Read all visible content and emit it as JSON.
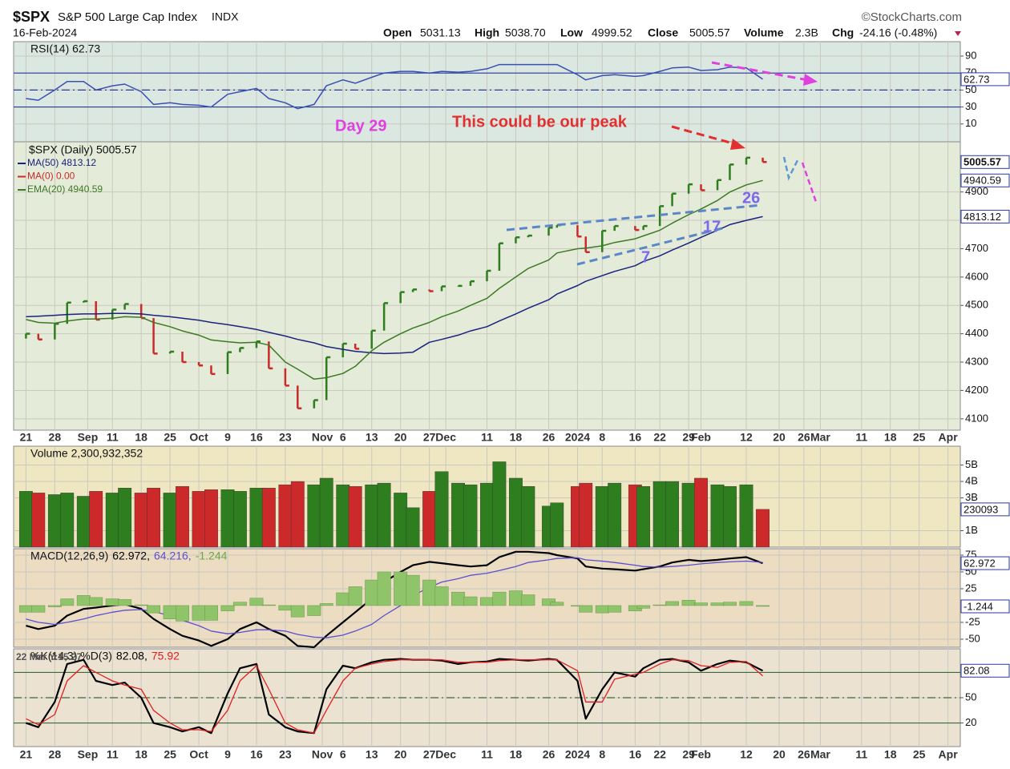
{
  "header": {
    "symbol": "$SPX",
    "name": "S&P 500 Large Cap Index",
    "exchange": "INDX",
    "date": "16-Feb-2024",
    "brand": "©StockCharts.com",
    "quote": [
      [
        "Open",
        "5031.13"
      ],
      [
        "High",
        "5038.70"
      ],
      [
        "Low",
        "4999.52"
      ],
      [
        "Close",
        "5005.57"
      ],
      [
        "Volume",
        "2.3B"
      ],
      [
        "Chg",
        "-24.16 (-0.48%)"
      ]
    ]
  },
  "chart_data": [
    {
      "type": "line",
      "title": "RSI(14) 62.73",
      "ylim": [
        -11,
        107
      ],
      "yticks": [
        10,
        30,
        50,
        70,
        90
      ],
      "ref_lines": [
        70,
        50,
        30
      ],
      "ref_styles": [
        "solid",
        "dashdot",
        "solid"
      ],
      "ref_color": "#2a3a9a",
      "background": "#dbe8e2",
      "series": [
        {
          "name": "",
          "color": "#3a4fb0",
          "values": [
            40,
            38,
            50,
            60,
            60,
            50,
            55,
            57,
            48,
            33,
            35,
            33,
            32,
            30,
            45,
            48,
            52,
            40,
            35,
            28,
            33,
            55,
            62,
            58,
            65,
            70,
            72,
            72,
            70,
            72,
            71,
            72,
            75,
            80,
            80,
            80,
            80,
            80,
            68,
            62,
            67,
            68,
            66,
            67,
            72,
            76,
            77,
            73,
            74,
            77,
            76,
            62.73
          ]
        }
      ],
      "last_values": [
        62.73
      ],
      "annotations": [
        "Day 29",
        "This could be our peak"
      ]
    },
    {
      "type": "stock",
      "name": "$SPX (Daily) 5005.57",
      "up_color": "#2e7d1e",
      "down_color": "#cc2a2a",
      "ylim": [
        4060,
        5077
      ],
      "yticks": [
        4100,
        4200,
        4300,
        4400,
        4500,
        4600,
        4700,
        4800,
        4900
      ],
      "background": "#e4ebd8",
      "xlim": [
        -3,
        227
      ],
      "xticks": [
        {
          "value": 0,
          "label": "21"
        },
        {
          "value": 7,
          "label": "28"
        },
        {
          "value": 15,
          "label": "Sep"
        },
        {
          "value": 21,
          "label": "11"
        },
        {
          "value": 28,
          "label": "18"
        },
        {
          "value": 35,
          "label": "25"
        },
        {
          "value": 42,
          "label": "Oct"
        },
        {
          "value": 49,
          "label": "9"
        },
        {
          "value": 56,
          "label": "16"
        },
        {
          "value": 63,
          "label": "23"
        },
        {
          "value": 72,
          "label": "Nov"
        },
        {
          "value": 77,
          "label": "6"
        },
        {
          "value": 84,
          "label": "13"
        },
        {
          "value": 91,
          "label": "20"
        },
        {
          "value": 98,
          "label": "27"
        },
        {
          "value": 102,
          "label": "Dec"
        },
        {
          "value": 112,
          "label": "11"
        },
        {
          "value": 119,
          "label": "18"
        },
        {
          "value": 127,
          "label": "26"
        },
        {
          "value": 134,
          "label": "2024"
        },
        {
          "value": 140,
          "label": "8"
        },
        {
          "value": 148,
          "label": "16"
        },
        {
          "value": 154,
          "label": "22"
        },
        {
          "value": 161,
          "label": "29"
        },
        {
          "value": 164,
          "label": "Feb"
        },
        {
          "value": 175,
          "label": "12"
        },
        {
          "value": 183,
          "label": "20"
        },
        {
          "value": 189,
          "label": "26"
        },
        {
          "value": 193,
          "label": "Mar"
        },
        {
          "value": 203,
          "label": "11"
        },
        {
          "value": 210,
          "label": "18"
        },
        {
          "value": 217,
          "label": "25"
        },
        {
          "value": 224,
          "label": "Apr"
        }
      ],
      "x": [
        0,
        3,
        7,
        10,
        14,
        17,
        21,
        24,
        28,
        31,
        35,
        38,
        42,
        45,
        49,
        52,
        56,
        59,
        63,
        66,
        70,
        73,
        77,
        80,
        84,
        87,
        91,
        94,
        98,
        101,
        105,
        108,
        112,
        115,
        119,
        122,
        127,
        129,
        134,
        136,
        140,
        143,
        148,
        150,
        154,
        157,
        161,
        164,
        168,
        171,
        175,
        179
      ],
      "values": [
        4400,
        4380,
        4435,
        4510,
        4515,
        4450,
        4485,
        4505,
        4455,
        4330,
        4337,
        4300,
        4288,
        4258,
        4335,
        4350,
        4373,
        4278,
        4217,
        4137,
        4166,
        4317,
        4365,
        4347,
        4411,
        4508,
        4547,
        4556,
        4550,
        4567,
        4569,
        4585,
        4622,
        4719,
        4740,
        4746,
        4774,
        4783,
        4743,
        4688,
        4763,
        4780,
        4766,
        4780,
        4850,
        4894,
        4927,
        4906,
        4942,
        4997,
        5021,
        5005.57
      ],
      "series": [
        {
          "name": "MA(50) 4813.12",
          "color": "#1a237e",
          "values": [
            4460,
            4462,
            4465,
            4468,
            4470,
            4470,
            4472,
            4472,
            4470,
            4465,
            4460,
            4455,
            4448,
            4440,
            4432,
            4425,
            4415,
            4405,
            4392,
            4380,
            4368,
            4355,
            4345,
            4338,
            4333,
            4330,
            4332,
            4335,
            4370,
            4380,
            4395,
            4410,
            4425,
            4445,
            4470,
            4490,
            4520,
            4540,
            4570,
            4585,
            4605,
            4620,
            4640,
            4655,
            4675,
            4695,
            4720,
            4740,
            4765,
            4785,
            4800,
            4813.12
          ]
        },
        {
          "name": "MA(0) 0.00",
          "color": "#cc2a2a"
        },
        {
          "name": "EMA(20) 4940.59",
          "color": "#3d7a25",
          "values": [
            4450,
            4440,
            4437,
            4445,
            4452,
            4452,
            4455,
            4460,
            4458,
            4440,
            4425,
            4410,
            4395,
            4378,
            4372,
            4368,
            4370,
            4360,
            4300,
            4275,
            4240,
            4245,
            4260,
            4285,
            4340,
            4370,
            4400,
            4420,
            4440,
            4460,
            4480,
            4500,
            4525,
            4560,
            4600,
            4630,
            4660,
            4685,
            4700,
            4702,
            4710,
            4722,
            4735,
            4745,
            4765,
            4790,
            4820,
            4840,
            4870,
            4900,
            4925,
            4940.59
          ]
        }
      ],
      "last_values": [
        5005.57,
        4940.59,
        4813.12
      ],
      "annotations": [
        "7",
        "17",
        "26"
      ]
    },
    {
      "type": "bar",
      "title": "Volume 2,300,932,352",
      "up_color": "#2e7d1e",
      "down_color": "#cc2a2a",
      "ylim": [
        0,
        6.15
      ],
      "background": "#efe6c2",
      "yticks": [
        {
          "value": 1,
          "label": "1B"
        },
        {
          "value": 3,
          "label": "3B"
        },
        {
          "value": 4,
          "label": "4B"
        },
        {
          "value": 5,
          "label": "5B"
        }
      ],
      "values": [
        3.4,
        3.3,
        3.2,
        3.3,
        3.1,
        3.4,
        3.3,
        3.6,
        3.3,
        3.6,
        3.3,
        3.7,
        3.4,
        3.5,
        3.5,
        3.4,
        3.6,
        3.6,
        3.8,
        4.0,
        3.8,
        4.2,
        3.8,
        3.7,
        3.8,
        3.9,
        3.3,
        2.4,
        3.4,
        4.6,
        3.9,
        3.8,
        3.9,
        5.2,
        4.2,
        3.7,
        2.5,
        2.7,
        3.7,
        3.9,
        3.7,
        3.9,
        3.8,
        3.7,
        4.0,
        4.0,
        3.9,
        4.2,
        3.8,
        3.7,
        3.8,
        2.3
      ],
      "last_values": [
        {
          "value": 2.3,
          "label": "230093"
        }
      ]
    },
    {
      "type": "line",
      "title": "MACD(12,26,9)",
      "ylim": [
        -62,
        84.5
      ],
      "yticks": [
        -50,
        -25,
        25,
        50,
        75
      ],
      "background": "#ecdcc2",
      "series": [
        {
          "name": "62.972,",
          "color": "#000000",
          "width": 2.2,
          "values": [
            -30,
            -35,
            -30,
            -15,
            -5,
            -3,
            0,
            2,
            -5,
            -20,
            -35,
            -45,
            -52,
            -60,
            -50,
            -35,
            -25,
            -35,
            -45,
            -60,
            -62,
            -45,
            -25,
            -10,
            10,
            35,
            50,
            60,
            65,
            63,
            60,
            58,
            60,
            72,
            80,
            80,
            78,
            75,
            70,
            58,
            55,
            54,
            52,
            54,
            58,
            64,
            68,
            66,
            68,
            70,
            72,
            62.972
          ]
        },
        {
          "name": "64.216,",
          "color": "#5b4fd0",
          "width": 1.3,
          "values": [
            -20,
            -25,
            -28,
            -25,
            -20,
            -15,
            -10,
            -7,
            -6,
            -9,
            -15,
            -22,
            -30,
            -38,
            -42,
            -40,
            -36,
            -36,
            -38,
            -43,
            -47,
            -48,
            -44,
            -38,
            -28,
            -15,
            0,
            15,
            27,
            35,
            40,
            45,
            48,
            52,
            58,
            64,
            68,
            70,
            71,
            68,
            66,
            64,
            60,
            58,
            57,
            58,
            60,
            62,
            64,
            65,
            66,
            64.216
          ]
        },
        {
          "name": "-1.244",
          "color": "#8fc46a",
          "kind": "histogram",
          "values": [
            -10,
            -10,
            -2,
            10,
            15,
            12,
            10,
            9,
            1,
            -11,
            -20,
            -23,
            -22,
            -22,
            -8,
            5,
            11,
            1,
            -7,
            -17,
            -15,
            3,
            19,
            28,
            38,
            50,
            50,
            45,
            38,
            28,
            20,
            13,
            12,
            20,
            22,
            16,
            10,
            5,
            -1,
            -10,
            -11,
            -10,
            -8,
            -4,
            1,
            6,
            8,
            4,
            4,
            5,
            6,
            -1.244
          ]
        }
      ],
      "last_values": [
        62.972,
        -1.244
      ]
    },
    {
      "type": "line",
      "title": "%K(14,3) %D(3)",
      "ylim": [
        -8,
        108
      ],
      "yticks": [
        20,
        50
      ],
      "ref_lines": [
        80,
        50,
        20
      ],
      "ref_styles": [
        "solid",
        "dashdot",
        "solid"
      ],
      "ref_color": "#3a6a3a",
      "background": "#ebe2d2",
      "series": [
        {
          "name": "82.08,",
          "color": "#000000",
          "width": 2.2,
          "values": [
            20,
            15,
            45,
            90,
            95,
            70,
            65,
            68,
            50,
            20,
            15,
            10,
            15,
            8,
            55,
            85,
            90,
            30,
            15,
            10,
            8,
            60,
            88,
            85,
            92,
            95,
            96,
            95,
            95,
            94,
            90,
            92,
            93,
            96,
            95,
            94,
            96,
            95,
            70,
            25,
            60,
            80,
            75,
            85,
            95,
            96,
            92,
            82,
            90,
            94,
            92,
            82.08
          ]
        },
        {
          "name": "75.92",
          "color": "#e02020",
          "width": 1.3,
          "values": [
            25,
            18,
            30,
            70,
            88,
            80,
            70,
            65,
            60,
            35,
            20,
            12,
            12,
            10,
            35,
            70,
            88,
            60,
            20,
            12,
            8,
            35,
            70,
            85,
            90,
            93,
            95,
            95,
            95,
            95,
            92,
            92,
            92,
            94,
            95,
            95,
            95,
            95,
            82,
            45,
            45,
            72,
            78,
            80,
            90,
            95,
            94,
            88,
            86,
            92,
            93,
            75.92
          ]
        }
      ],
      "last_values": [
        82.08
      ],
      "annotations": [
        "22 Mar Y:15.27"
      ]
    }
  ]
}
